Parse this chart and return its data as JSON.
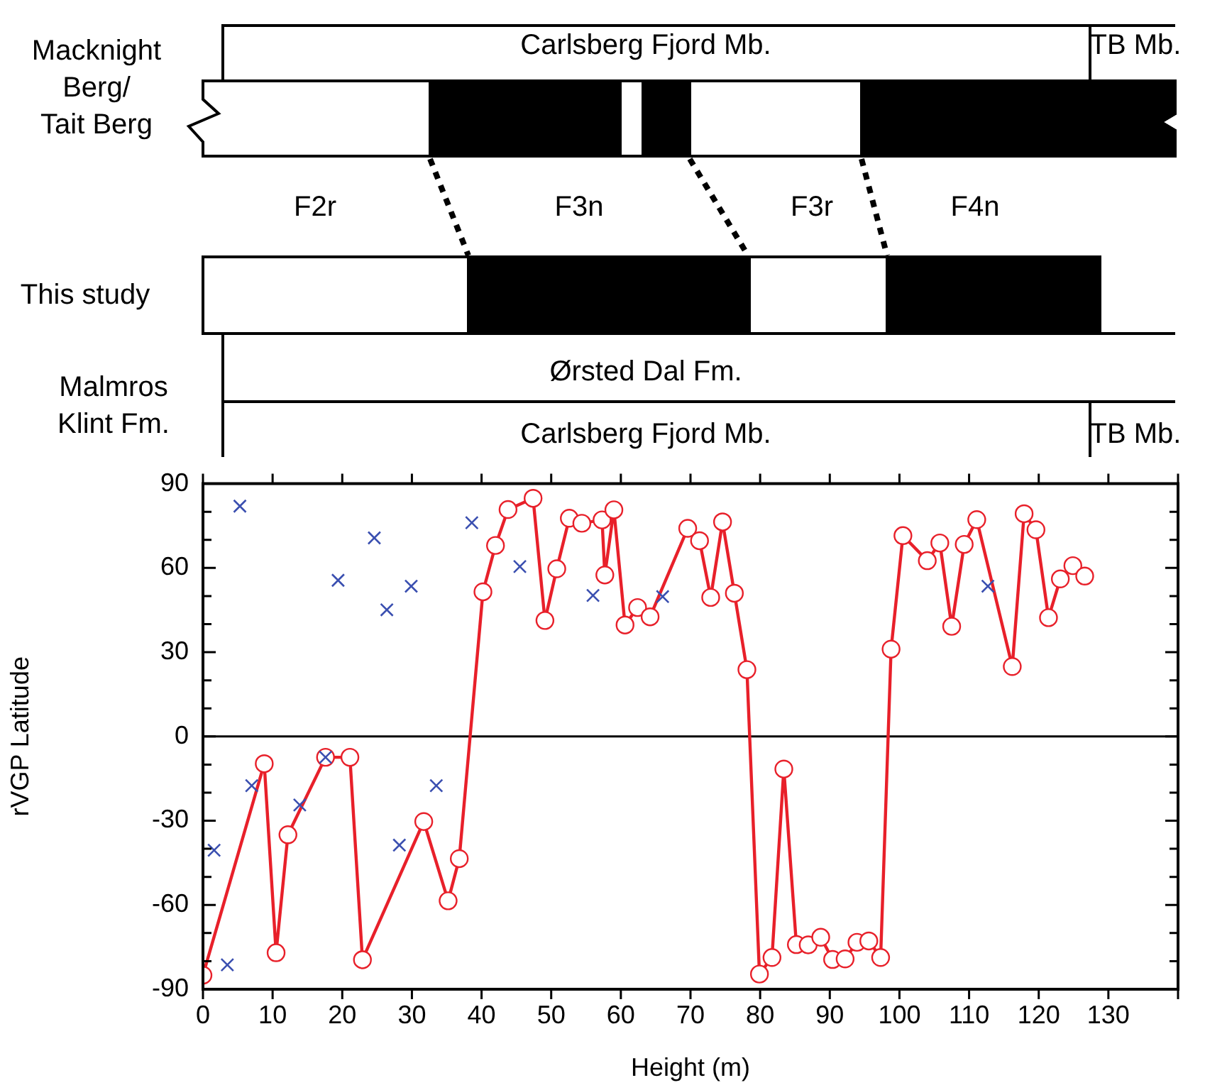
{
  "chart_data": {
    "type": "line",
    "xlabel": "Height (m)",
    "ylabel": "rVGP Latitude",
    "xlim": [
      0,
      140
    ],
    "xticks": [
      0,
      10,
      20,
      30,
      40,
      50,
      60,
      70,
      80,
      90,
      100,
      110,
      120,
      130,
      {
        "value": 140,
        "label": null
      }
    ],
    "ylim": [
      -90,
      90
    ],
    "yticks": [
      -90,
      {
        "value": -80,
        "label": null
      },
      {
        "value": -70,
        "label": null
      },
      -60,
      {
        "value": -50,
        "label": null
      },
      {
        "value": -40,
        "label": null
      },
      -30,
      {
        "value": -20,
        "label": null
      },
      {
        "value": -10,
        "label": null
      },
      0,
      {
        "value": 10,
        "label": null
      },
      {
        "value": 20,
        "label": null
      },
      30,
      {
        "value": 40,
        "label": null
      },
      {
        "value": 50,
        "label": null
      },
      60,
      {
        "value": 70,
        "label": null
      },
      {
        "value": 80,
        "label": null
      },
      90
    ],
    "grid": false,
    "ref_lines": [
      {
        "axis": "y",
        "value": 0,
        "color": "#000000"
      }
    ],
    "annotations": [
      "Macknight\nBerg/\nTait Berg",
      "Carlsberg Fjord Mb.",
      "TB Mb.",
      "F2r",
      "F3n",
      "F3r",
      "F4n",
      "This study",
      "Ørsted Dal Fm.",
      "Malmros\nKlint Fm.",
      "Carlsberg Fjord Mb.",
      "TB Mb."
    ],
    "series": [
      {
        "type": "scatter",
        "color": "#3a4fb0",
        "marker": "cross",
        "x": [
          1.6,
          3.5,
          5.3,
          7.0,
          13.9,
          17.6,
          19.4,
          24.6,
          26.4,
          28.2,
          29.9,
          33.5,
          38.6,
          45.5,
          56.0,
          66.0,
          112.7
        ],
        "values": [
          -40.5,
          -81.3,
          82,
          -17.5,
          -24.4,
          -7.4,
          55.6,
          70.7,
          45.1,
          -38.7,
          53.5,
          -17.5,
          76.1,
          60.5,
          50.2,
          49.8,
          53.5
        ]
      },
      {
        "color": "#e8202a",
        "marker": "circle",
        "x": [
          0,
          8.8,
          10.5,
          12.2,
          17.6,
          21.1,
          22.9,
          31.7,
          35.2,
          36.8,
          40.2,
          42.0,
          43.8,
          47.4,
          49.1,
          50.8,
          52.6,
          54.4,
          57.3,
          57.7,
          59.0,
          60.6,
          62.4,
          64.2,
          69.6,
          71.3,
          72.9,
          74.6,
          76.3,
          78.1,
          79.9,
          81.7,
          83.4,
          85.2,
          86.9,
          88.7,
          90.4,
          92.2,
          93.9,
          95.6,
          97.3,
          98.8,
          100.5,
          104.0,
          105.8,
          107.5,
          109.3,
          111.1,
          116.2,
          117.9,
          119.6,
          121.4,
          123.1,
          124.9,
          126.6
        ],
        "values": [
          -85,
          -9.7,
          -77,
          -35,
          -7.4,
          -7.4,
          -79.5,
          -30.3,
          -58.5,
          -43.5,
          51.5,
          68,
          80.8,
          84.8,
          41.3,
          59.7,
          77.7,
          75.9,
          77.1,
          57.5,
          80.7,
          39.7,
          45.9,
          42.6,
          74.1,
          69.7,
          49.5,
          76.4,
          51,
          23.8,
          -84.6,
          -78.7,
          -11.6,
          -74.1,
          -74.2,
          -71.5,
          -79.4,
          -79.2,
          -73.3,
          -72.8,
          -78.7,
          31.1,
          71.5,
          62.6,
          68.9,
          39.2,
          68.4,
          77.2,
          24.9,
          79.3,
          73.6,
          42.3,
          56.1,
          60.8,
          57.1
        ]
      }
    ]
  }
}
